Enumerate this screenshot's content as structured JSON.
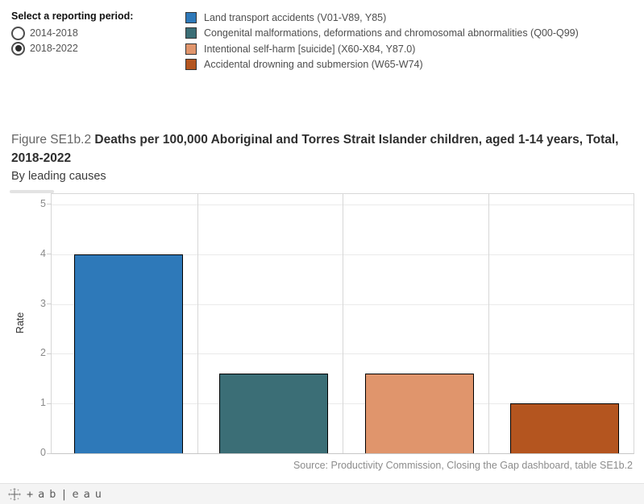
{
  "filter": {
    "title": "Select a reporting period:",
    "options": [
      {
        "label": "2014-2018",
        "selected": false
      },
      {
        "label": "2018-2022",
        "selected": true
      }
    ]
  },
  "title": {
    "figure_label": "Figure SE1b.2",
    "main": "Deaths per 100,000 Aboriginal and Torres Strait Islander children, aged 1-14 years, Total, 2018-2022",
    "subtitle": "By leading causes"
  },
  "chart_data": {
    "type": "bar",
    "title": "Figure SE1b.2 Deaths per 100,000 Aboriginal and Torres Strait Islander children, aged 1-14 years, Total, 2018-2022",
    "subtitle": "By leading causes",
    "categories": [
      "Land transport accidents (V01-V89, Y85)",
      "Congenital malformations, deformations and chromosomal abnormalities (Q00-Q99)",
      "Intentional self-harm [suicide] (X60-X84, Y87.0)",
      "Accidental drowning and submersion (W65-W74)"
    ],
    "values": [
      4.0,
      1.6,
      1.6,
      1.0
    ],
    "colors": [
      "#2e79b9",
      "#3b6e76",
      "#e0956c",
      "#b4551f"
    ],
    "bar_border_color": "#000000",
    "xlabel": "",
    "ylabel": "Rate",
    "yticks": [
      0,
      1,
      2,
      3,
      4,
      5
    ],
    "ylim": [
      0,
      5.21
    ],
    "grid": true,
    "legend_position": "top"
  },
  "source": "Source: Productivity Commission, Closing the Gap dashboard, table SE1b.2",
  "footer": {
    "wordmark": "+ab|eau"
  }
}
